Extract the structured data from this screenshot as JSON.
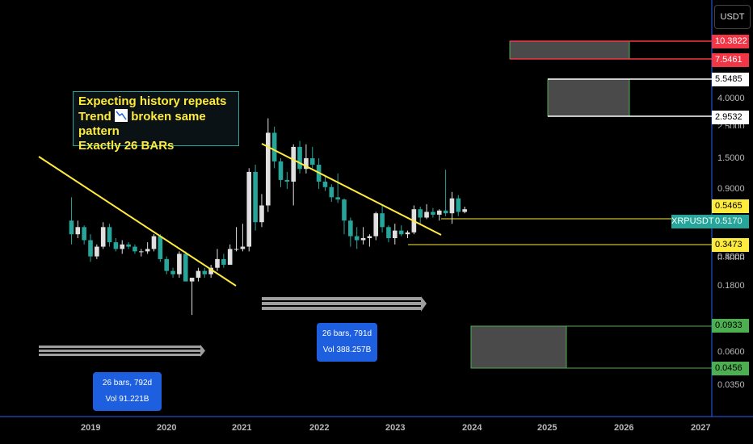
{
  "toolbar": {
    "currency": "USDT"
  },
  "annotation": {
    "line1": "Expecting history repeats",
    "line2_prefix": "Trend",
    "line2_suffix": "broken same pattern",
    "line3": "Exactly 26 BARs"
  },
  "ranges": [
    {
      "line1": "26 bars, 792d",
      "line2": "Vol 91.221B"
    },
    {
      "line1": "26 bars, 791d",
      "line2": "Vol 388.257B"
    }
  ],
  "symbol_tag": "XRPUSDT",
  "price_badges": [
    {
      "text": "10.3822",
      "kind": "red"
    },
    {
      "text": "7.5461",
      "kind": "red"
    },
    {
      "text": "5.5485",
      "kind": "white"
    },
    {
      "text": "2.9532",
      "kind": "white"
    },
    {
      "text": "0.5465",
      "kind": "yellow"
    },
    {
      "text": "0.5170",
      "kind": "teal"
    },
    {
      "text": "0.3473",
      "kind": "yellow"
    },
    {
      "text": "0.0933",
      "kind": "green"
    },
    {
      "text": "0.0456",
      "kind": "green"
    }
  ],
  "colors": {
    "up": "#e0e0e0",
    "down": "#26a69a",
    "trendline": "#ffeb3b",
    "red": "#f23645",
    "green": "#4caf50",
    "teal": "#26a69a",
    "yellow": "#ffeb3b",
    "axis_border": "#2962ff"
  },
  "chart_data": {
    "type": "candlestick",
    "symbol": "XRPUSDT",
    "y_scale": "log",
    "ylim": [
      0.03,
      20
    ],
    "xlim": [
      "2018-06",
      "2027-05"
    ],
    "y_ticks": [
      "4.0000",
      "2.5000",
      "1.5000",
      "0.9000",
      "0.5000",
      "0.3000",
      "0.1800",
      "0.0600",
      "0.0350"
    ],
    "x_ticks": [
      "2019",
      "2020",
      "2021",
      "2022",
      "2023",
      "2024",
      "2025",
      "2026",
      "2027"
    ],
    "candles": [
      {
        "t": "2018-10",
        "o": 0.44,
        "h": 0.62,
        "l": 0.31,
        "c": 0.36
      },
      {
        "t": "2018-11",
        "o": 0.36,
        "h": 0.44,
        "l": 0.34,
        "c": 0.4
      },
      {
        "t": "2018-12",
        "o": 0.4,
        "h": 0.41,
        "l": 0.31,
        "c": 0.33
      },
      {
        "t": "2019-01",
        "o": 0.33,
        "h": 0.36,
        "l": 0.24,
        "c": 0.26
      },
      {
        "t": "2019-02",
        "o": 0.26,
        "h": 0.31,
        "l": 0.25,
        "c": 0.3
      },
      {
        "t": "2019-03",
        "o": 0.3,
        "h": 0.43,
        "l": 0.29,
        "c": 0.4
      },
      {
        "t": "2019-04",
        "o": 0.4,
        "h": 0.42,
        "l": 0.3,
        "c": 0.32
      },
      {
        "t": "2019-05",
        "o": 0.32,
        "h": 0.34,
        "l": 0.28,
        "c": 0.29
      },
      {
        "t": "2019-06",
        "o": 0.29,
        "h": 0.33,
        "l": 0.27,
        "c": 0.31
      },
      {
        "t": "2019-07",
        "o": 0.31,
        "h": 0.32,
        "l": 0.29,
        "c": 0.3
      },
      {
        "t": "2019-08",
        "o": 0.3,
        "h": 0.31,
        "l": 0.27,
        "c": 0.28
      },
      {
        "t": "2019-09",
        "o": 0.28,
        "h": 0.29,
        "l": 0.26,
        "c": 0.28
      },
      {
        "t": "2019-10",
        "o": 0.28,
        "h": 0.32,
        "l": 0.27,
        "c": 0.29
      },
      {
        "t": "2019-11",
        "o": 0.29,
        "h": 0.36,
        "l": 0.28,
        "c": 0.35
      },
      {
        "t": "2019-12",
        "o": 0.35,
        "h": 0.36,
        "l": 0.24,
        "c": 0.25
      },
      {
        "t": "2020-01",
        "o": 0.25,
        "h": 0.26,
        "l": 0.2,
        "c": 0.21
      },
      {
        "t": "2020-02",
        "o": 0.21,
        "h": 0.22,
        "l": 0.19,
        "c": 0.2
      },
      {
        "t": "2020-03",
        "o": 0.2,
        "h": 0.28,
        "l": 0.19,
        "c": 0.27
      },
      {
        "t": "2020-04",
        "o": 0.27,
        "h": 0.28,
        "l": 0.18,
        "c": 0.18
      },
      {
        "t": "2020-05",
        "o": 0.18,
        "h": 0.19,
        "l": 0.11,
        "c": 0.19
      },
      {
        "t": "2020-06",
        "o": 0.19,
        "h": 0.22,
        "l": 0.18,
        "c": 0.21
      },
      {
        "t": "2020-07",
        "o": 0.21,
        "h": 0.22,
        "l": 0.19,
        "c": 0.2
      },
      {
        "t": "2020-08",
        "o": 0.2,
        "h": 0.23,
        "l": 0.19,
        "c": 0.22
      },
      {
        "t": "2020-09",
        "o": 0.22,
        "h": 0.29,
        "l": 0.21,
        "c": 0.25
      },
      {
        "t": "2020-10",
        "o": 0.25,
        "h": 0.27,
        "l": 0.22,
        "c": 0.23
      },
      {
        "t": "2020-11",
        "o": 0.23,
        "h": 0.31,
        "l": 0.23,
        "c": 0.29
      },
      {
        "t": "2020-12",
        "o": 0.29,
        "h": 0.4,
        "l": 0.28,
        "c": 0.29
      },
      {
        "t": "2021-01",
        "o": 0.29,
        "h": 0.42,
        "l": 0.28,
        "c": 0.3
      },
      {
        "t": "2021-02",
        "o": 0.3,
        "h": 0.95,
        "l": 0.28,
        "c": 0.9
      },
      {
        "t": "2021-03",
        "o": 0.9,
        "h": 1.0,
        "l": 0.38,
        "c": 0.43
      },
      {
        "t": "2021-04",
        "o": 0.43,
        "h": 0.65,
        "l": 0.4,
        "c": 0.55
      },
      {
        "t": "2021-05",
        "o": 0.55,
        "h": 1.98,
        "l": 0.5,
        "c": 1.6
      },
      {
        "t": "2021-06",
        "o": 1.6,
        "h": 1.75,
        "l": 0.95,
        "c": 1.05
      },
      {
        "t": "2021-07",
        "o": 1.05,
        "h": 1.1,
        "l": 0.72,
        "c": 0.8
      },
      {
        "t": "2021-08",
        "o": 0.8,
        "h": 0.9,
        "l": 0.7,
        "c": 0.78
      },
      {
        "t": "2021-09",
        "o": 0.78,
        "h": 1.35,
        "l": 0.55,
        "c": 1.3
      },
      {
        "t": "2021-10",
        "o": 1.3,
        "h": 1.42,
        "l": 0.88,
        "c": 0.94
      },
      {
        "t": "2021-11",
        "o": 0.94,
        "h": 1.35,
        "l": 0.88,
        "c": 1.1
      },
      {
        "t": "2021-12",
        "o": 1.1,
        "h": 1.3,
        "l": 0.95,
        "c": 1.0
      },
      {
        "t": "2022-01",
        "o": 1.0,
        "h": 1.1,
        "l": 0.7,
        "c": 0.78
      },
      {
        "t": "2022-02",
        "o": 0.78,
        "h": 0.84,
        "l": 0.68,
        "c": 0.72
      },
      {
        "t": "2022-03",
        "o": 0.72,
        "h": 0.75,
        "l": 0.58,
        "c": 0.62
      },
      {
        "t": "2022-04",
        "o": 0.62,
        "h": 0.88,
        "l": 0.57,
        "c": 0.6
      },
      {
        "t": "2022-05",
        "o": 0.6,
        "h": 0.61,
        "l": 0.36,
        "c": 0.44
      },
      {
        "t": "2022-06",
        "o": 0.44,
        "h": 0.46,
        "l": 0.3,
        "c": 0.35
      },
      {
        "t": "2022-07",
        "o": 0.35,
        "h": 0.4,
        "l": 0.29,
        "c": 0.33
      },
      {
        "t": "2022-08",
        "o": 0.33,
        "h": 0.4,
        "l": 0.31,
        "c": 0.34
      },
      {
        "t": "2022-09",
        "o": 0.34,
        "h": 0.36,
        "l": 0.3,
        "c": 0.35
      },
      {
        "t": "2022-10",
        "o": 0.35,
        "h": 0.5,
        "l": 0.33,
        "c": 0.49
      },
      {
        "t": "2022-11",
        "o": 0.49,
        "h": 0.56,
        "l": 0.37,
        "c": 0.4
      },
      {
        "t": "2022-12",
        "o": 0.4,
        "h": 0.41,
        "l": 0.32,
        "c": 0.34
      },
      {
        "t": "2023-01",
        "o": 0.34,
        "h": 0.42,
        "l": 0.31,
        "c": 0.38
      },
      {
        "t": "2023-02",
        "o": 0.38,
        "h": 0.41,
        "l": 0.35,
        "c": 0.36
      },
      {
        "t": "2023-03",
        "o": 0.36,
        "h": 0.38,
        "l": 0.34,
        "c": 0.37
      },
      {
        "t": "2023-04",
        "o": 0.37,
        "h": 0.55,
        "l": 0.36,
        "c": 0.52
      },
      {
        "t": "2023-05",
        "o": 0.52,
        "h": 0.54,
        "l": 0.42,
        "c": 0.46
      },
      {
        "t": "2023-06",
        "o": 0.46,
        "h": 0.56,
        "l": 0.45,
        "c": 0.5
      },
      {
        "t": "2023-07",
        "o": 0.5,
        "h": 0.53,
        "l": 0.46,
        "c": 0.48
      },
      {
        "t": "2023-08",
        "o": 0.48,
        "h": 0.52,
        "l": 0.44,
        "c": 0.51
      },
      {
        "t": "2023-09",
        "o": 0.51,
        "h": 0.93,
        "l": 0.47,
        "c": 0.49
      },
      {
        "t": "2023-10",
        "o": 0.49,
        "h": 0.67,
        "l": 0.42,
        "c": 0.61
      },
      {
        "t": "2023-11",
        "o": 0.61,
        "h": 0.64,
        "l": 0.47,
        "c": 0.5
      },
      {
        "t": "2023-12",
        "o": 0.5,
        "h": 0.54,
        "l": 0.49,
        "c": 0.52
      }
    ]
  }
}
